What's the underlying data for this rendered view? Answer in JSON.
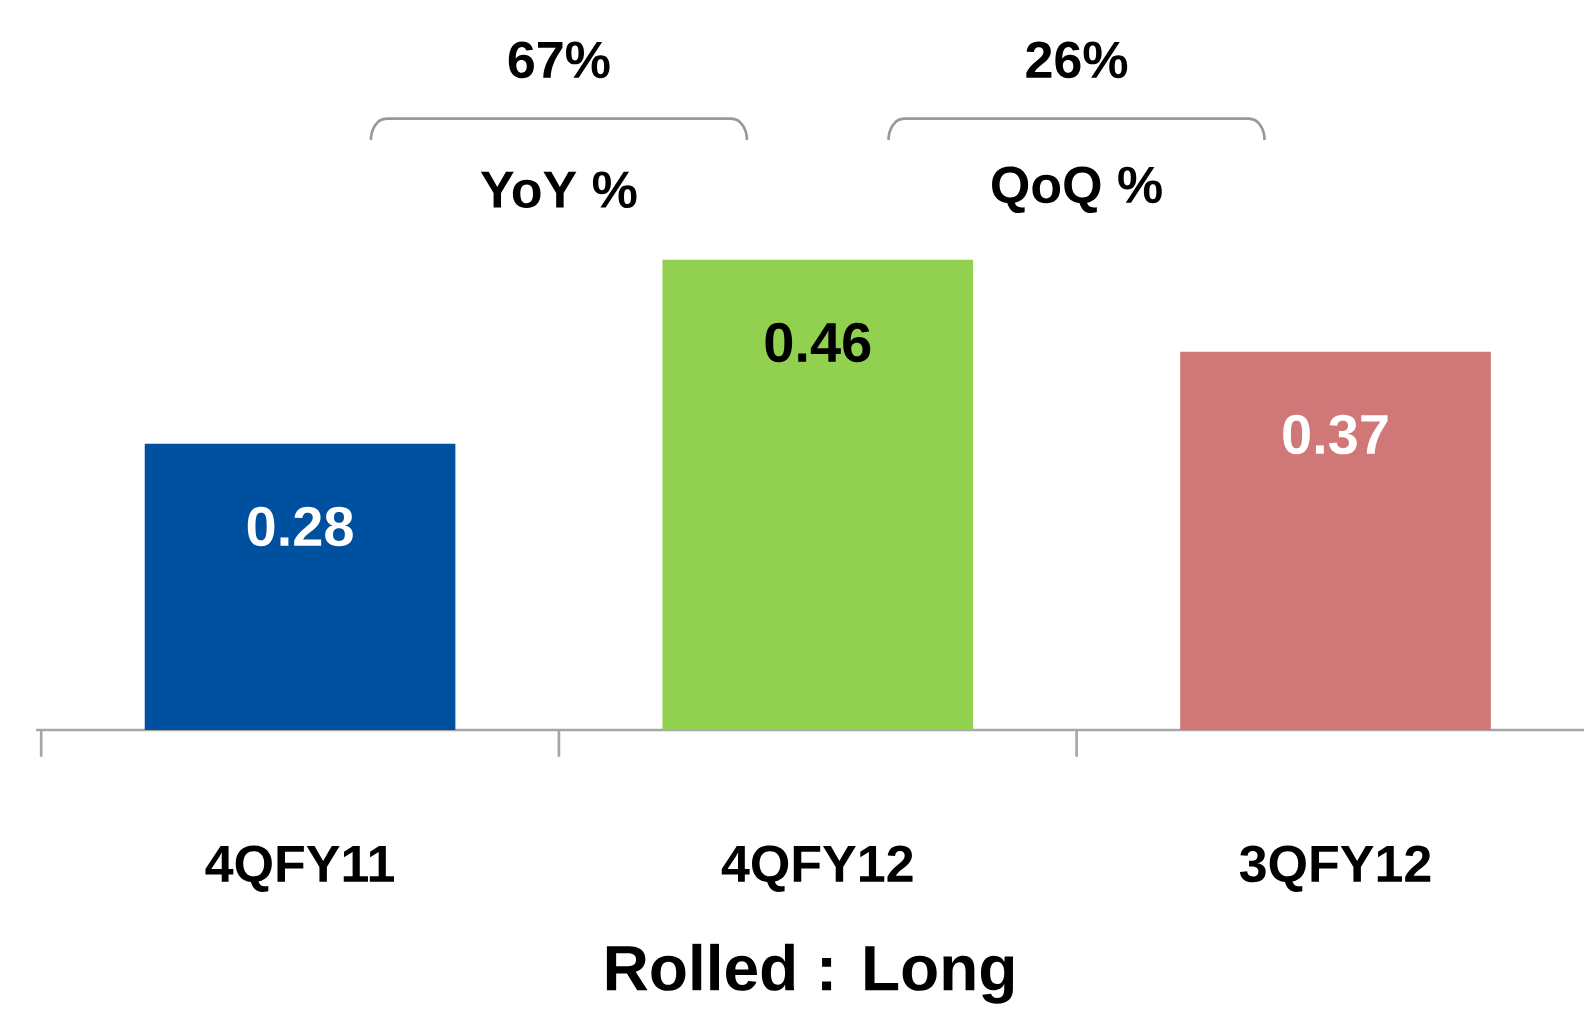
{
  "chart_data": {
    "type": "bar",
    "xlabel": "Rolled : Long",
    "categories": [
      "4QFY11",
      "4QFY12",
      "3QFY12"
    ],
    "values": [
      0.28,
      0.46,
      0.37
    ],
    "colors": [
      "#0050a0",
      "#92d050",
      "#d07878"
    ],
    "data_labels": true,
    "annotations": [
      "67%",
      "YoY %",
      "26%",
      "QoQ %"
    ]
  }
}
